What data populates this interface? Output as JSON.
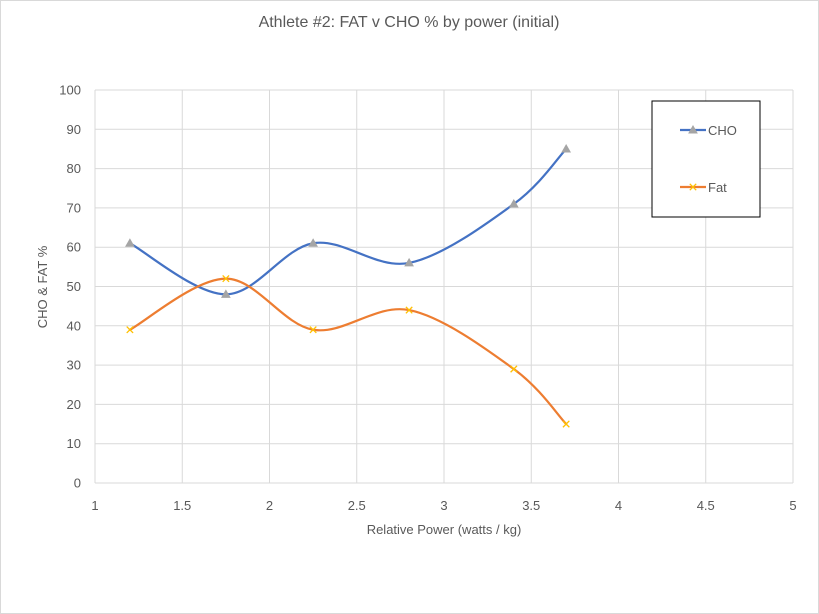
{
  "chart_data": {
    "type": "line",
    "title": "Athlete #2: FAT v CHO % by power (initial)",
    "xlabel": "Relative Power (watts / kg)",
    "ylabel": "CHO & FAT %",
    "xlim": [
      1,
      5
    ],
    "ylim": [
      0,
      100
    ],
    "x_ticks": [
      "1",
      "1.5",
      "2",
      "2.5",
      "3",
      "3.5",
      "4",
      "4.5",
      "5"
    ],
    "y_ticks": [
      "0",
      "10",
      "20",
      "30",
      "40",
      "50",
      "60",
      "70",
      "80",
      "90",
      "100"
    ],
    "grid": true,
    "smooth": true,
    "legend_position": "top-right",
    "series": [
      {
        "name": "CHO",
        "color": "#4472c4",
        "marker": "triangle",
        "points": [
          [
            1.2,
            61
          ],
          [
            1.75,
            48
          ],
          [
            2.25,
            61
          ],
          [
            2.8,
            56
          ],
          [
            3.4,
            71
          ],
          [
            3.7,
            85
          ]
        ]
      },
      {
        "name": "Fat",
        "color": "#ed7d31",
        "marker": "x",
        "points": [
          [
            1.2,
            39
          ],
          [
            1.75,
            52
          ],
          [
            2.25,
            39
          ],
          [
            2.8,
            44
          ],
          [
            3.4,
            29
          ],
          [
            3.7,
            15
          ]
        ]
      }
    ]
  }
}
